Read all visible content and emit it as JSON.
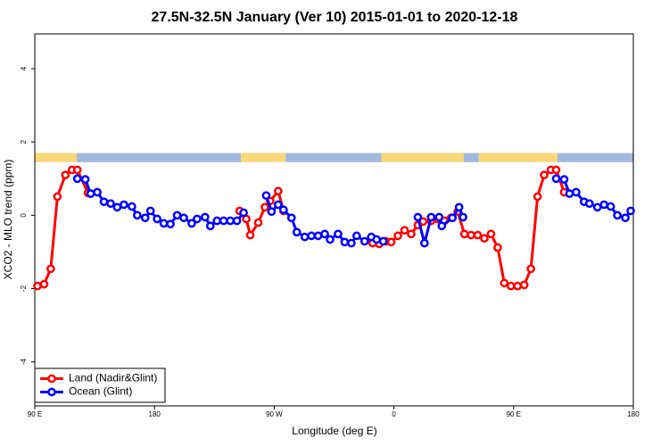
{
  "chart_data": {
    "type": "line",
    "title": "27.5N-32.5N January (Ver 10)   2015-01-01 to 2020-12-18",
    "x_label": "Longitude (deg E)",
    "y_label": "XCO2 - MLO trend (ppm)",
    "xlim": [
      90,
      540
    ],
    "ylim": [
      -5.2,
      4.95
    ],
    "xticks": [
      {
        "value": 90,
        "label": "90 E"
      },
      180,
      {
        "value": 270,
        "label": "90 W"
      },
      {
        "value": 360,
        "label": "0"
      },
      {
        "value": 450,
        "label": "90 E"
      },
      {
        "value": 540,
        "label": "180"
      }
    ],
    "yticks": [
      -4,
      -2,
      0,
      2,
      4
    ],
    "legend": "bottom-left",
    "surface_strip": {
      "ylim": [
        1.45,
        1.7
      ],
      "segments": [
        {
          "start": 90,
          "end": 121.5,
          "color": "#f8d878"
        },
        {
          "start": 121.5,
          "end": 245,
          "color": "#a3b9dd"
        },
        {
          "start": 245,
          "end": 278.6,
          "color": "#f8d878"
        },
        {
          "start": 278.6,
          "end": 350.6,
          "color": "#a3b9dd"
        },
        {
          "start": 350.6,
          "end": 412.5,
          "color": "#f8d878"
        },
        {
          "start": 412.5,
          "end": 423.8,
          "color": "#a3b9dd"
        },
        {
          "start": 423.8,
          "end": 483,
          "color": "#f8d878"
        },
        {
          "start": 483,
          "end": 540,
          "color": "#a3b9dd"
        }
      ]
    },
    "series": [
      {
        "name": "Land (Nadir&Glint)",
        "color": "#ff0000",
        "x": [
          92,
          97,
          102,
          107,
          113,
          118,
          122,
          130,
          null,
          244,
          249,
          252,
          258,
          263,
          267,
          273,
          277,
          null,
          344,
          349,
          354,
          358,
          363,
          368,
          373,
          378,
          382,
          388,
          393,
          398,
          403,
          408,
          413,
          418,
          423,
          428,
          433,
          438,
          443,
          448,
          453,
          458,
          463,
          468,
          473,
          478,
          482,
          488
        ],
        "values": [
          -1.93,
          -1.88,
          -1.46,
          0.51,
          1.1,
          1.24,
          1.24,
          0.61,
          null,
          0.12,
          -0.1,
          -0.54,
          -0.2,
          0.22,
          0.39,
          0.66,
          0.12,
          null,
          -0.76,
          -0.78,
          -0.71,
          -0.73,
          -0.56,
          -0.41,
          -0.51,
          -0.27,
          -0.17,
          -0.15,
          -0.1,
          -0.15,
          -0.07,
          0.1,
          -0.51,
          -0.54,
          -0.54,
          -0.63,
          -0.51,
          -0.88,
          -1.85,
          -1.93,
          -1.93,
          -1.9,
          -1.46,
          0.51,
          1.1,
          1.24,
          1.24,
          0.63
        ]
      },
      {
        "name": "Ocean (Glint)",
        "color": "#0000ff",
        "x": [
          122,
          128,
          132,
          137,
          142,
          147,
          152,
          157,
          163,
          167,
          173,
          177,
          182,
          187,
          192,
          197,
          202,
          208,
          212,
          218,
          222,
          227,
          232,
          237,
          242,
          247,
          null,
          264,
          268,
          273,
          277,
          283,
          287,
          293,
          298,
          303,
          308,
          312,
          318,
          323,
          328,
          332,
          338,
          343,
          347,
          352,
          null,
          378,
          383,
          388,
          394,
          396,
          404,
          409,
          412,
          null,
          482,
          488,
          492,
          497,
          503,
          507,
          513,
          518,
          523,
          528,
          534,
          538
        ],
        "values": [
          1.0,
          0.98,
          0.59,
          0.63,
          0.37,
          0.32,
          0.22,
          0.29,
          0.24,
          0.0,
          -0.07,
          0.12,
          -0.1,
          -0.22,
          -0.24,
          0.0,
          -0.07,
          -0.22,
          -0.1,
          -0.05,
          -0.29,
          -0.15,
          -0.15,
          -0.15,
          -0.15,
          0.07,
          null,
          0.54,
          0.1,
          0.29,
          0.15,
          -0.07,
          -0.46,
          -0.59,
          -0.56,
          -0.56,
          -0.51,
          -0.66,
          -0.51,
          -0.73,
          -0.76,
          -0.56,
          -0.71,
          -0.59,
          -0.66,
          -0.71,
          null,
          -0.05,
          -0.76,
          -0.05,
          -0.05,
          -0.29,
          -0.07,
          0.22,
          -0.05,
          null,
          1.0,
          0.98,
          0.59,
          0.63,
          0.37,
          0.32,
          0.22,
          0.29,
          0.24,
          0.0,
          -0.07,
          0.12
        ]
      }
    ]
  }
}
